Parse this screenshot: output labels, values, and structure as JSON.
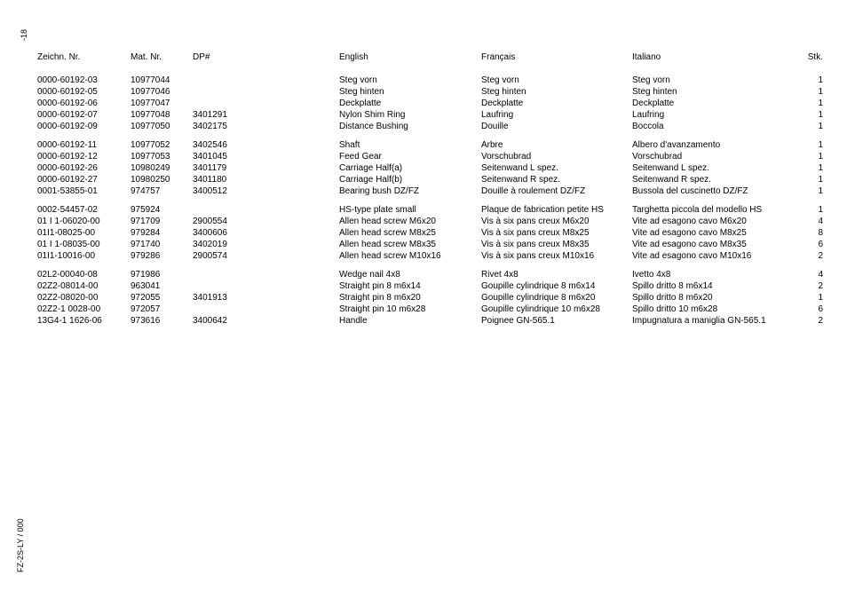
{
  "page_number": "-18",
  "doc_code": "FZ-2S-LY / 000",
  "columns": {
    "zeichn": "Zeichn. Nr.",
    "mat": "Mat. Nr.",
    "dp": "DP#",
    "en": "English",
    "fr": "Français",
    "it": "Italiano",
    "stk": "Stk."
  },
  "groups": [
    {
      "rows": [
        {
          "zeichn": "0000-60192-03",
          "mat": "10977044",
          "dp": "",
          "en": "Steg vorn",
          "fr": "Steg vorn",
          "it": "Steg vorn",
          "stk": "1"
        },
        {
          "zeichn": "0000-60192-05",
          "mat": "10977046",
          "dp": "",
          "en": "Steg hinten",
          "fr": "Steg hinten",
          "it": "Steg hinten",
          "stk": "1"
        },
        {
          "zeichn": "0000-60192-06",
          "mat": "10977047",
          "dp": "",
          "en": "Deckplatte",
          "fr": "Deckplatte",
          "it": "Deckplatte",
          "stk": "1"
        },
        {
          "zeichn": "0000-60192-07",
          "mat": "10977048",
          "dp": "3401291",
          "en": "Nylon Shim Ring",
          "fr": "Laufring",
          "it": "Laufring",
          "stk": "1"
        },
        {
          "zeichn": "0000-60192-09",
          "mat": "10977050",
          "dp": "3402175",
          "en": "Distance Bushing",
          "fr": "Douille",
          "it": "Boccola",
          "stk": "1"
        }
      ]
    },
    {
      "rows": [
        {
          "zeichn": "0000-60192-11",
          "mat": "10977052",
          "dp": "3402546",
          "en": "Shaft",
          "fr": "Arbre",
          "it": "Albero d'avanzamento",
          "stk": "1"
        },
        {
          "zeichn": "0000-60192-12",
          "mat": "10977053",
          "dp": "3401045",
          "en": "Feed Gear",
          "fr": "Vorschubrad",
          "it": "Vorschubrad",
          "stk": "1"
        },
        {
          "zeichn": "0000-60192-26",
          "mat": "10980249",
          "dp": "3401179",
          "en": "Carriage Half(a)",
          "fr": "Seitenwand L spez.",
          "it": "Seitenwand L spez.",
          "stk": "1"
        },
        {
          "zeichn": "0000-60192-27",
          "mat": "10980250",
          "dp": "3401180",
          "en": "Carriage Half(b)",
          "fr": "Seitenwand R spez.",
          "it": "Seitenwand R spez.",
          "stk": "1"
        },
        {
          "zeichn": "0001-53855-01",
          "mat": "974757",
          "dp": "3400512",
          "en": "Bearing bush DZ/FZ",
          "fr": "Douille à roulement DZ/FZ",
          "it": "Bussola del cuscinetto DZ/FZ",
          "stk": "1"
        }
      ]
    },
    {
      "rows": [
        {
          "zeichn": "0002-54457-02",
          "mat": "975924",
          "dp": "",
          "en": "HS-type plate small",
          "fr": "Plaque de fabrication petite HS",
          "it": "Targhetta piccola del modello HS",
          "stk": "1"
        },
        {
          "zeichn": "01 I 1-06020-00",
          "mat": "971709",
          "dp": "2900554",
          "en": "Allen head screw M6x20",
          "fr": "Vis à six pans creux M6x20",
          "it": "Vite ad esagono cavo M6x20",
          "stk": "4"
        },
        {
          "zeichn": "01I1-08025-00",
          "mat": "979284",
          "dp": "3400606",
          "en": "Allen head screw M8x25",
          "fr": "Vis à six pans creux M8x25",
          "it": "Vite ad esagono cavo M8x25",
          "stk": "8"
        },
        {
          "zeichn": "01 I 1-08035-00",
          "mat": "971740",
          "dp": "3402019",
          "en": "Allen head screw M8x35",
          "fr": "Vis à six pans creux M8x35",
          "it": "Vite ad esagono cavo M8x35",
          "stk": "6"
        },
        {
          "zeichn": "01I1-10016-00",
          "mat": "979286",
          "dp": "2900574",
          "en": "Allen head screw M10x16",
          "fr": "Vis à six pans creux M10x16",
          "it": "Vite ad esagono cavo M10x16",
          "stk": "2"
        }
      ]
    },
    {
      "rows": [
        {
          "zeichn": "02L2-00040-08",
          "mat": "971986",
          "dp": "",
          "en": "Wedge nail 4x8",
          "fr": "Rivet 4x8",
          "it": "Ivetto 4x8",
          "stk": "4"
        },
        {
          "zeichn": "02Z2-08014-00",
          "mat": "963041",
          "dp": "",
          "en": "Straight pin 8 m6x14",
          "fr": "Goupille cylindrique 8 m6x14",
          "it": "Spillo dritto 8 m6x14",
          "stk": "2"
        },
        {
          "zeichn": "02Z2-08020-00",
          "mat": "972055",
          "dp": "3401913",
          "en": "Straight pin 8 m6x20",
          "fr": "Goupille cylindrique 8 m6x20",
          "it": "Spillo dritto 8 m6x20",
          "stk": "1"
        },
        {
          "zeichn": "02Z2-1 0028-00",
          "mat": "972057",
          "dp": "",
          "en": "Straight pin 10 m6x28",
          "fr": "Goupille cylindrique 10 m6x28",
          "it": "Spillo dritto 10 m6x28",
          "stk": "6"
        },
        {
          "zeichn": "13G4-1 1626-06",
          "mat": "973616",
          "dp": "3400642",
          "en": "Handle",
          "fr": "Poignee GN-565.1",
          "it": "Impugnatura a maniglia GN-565.1",
          "stk": "2"
        }
      ]
    }
  ]
}
